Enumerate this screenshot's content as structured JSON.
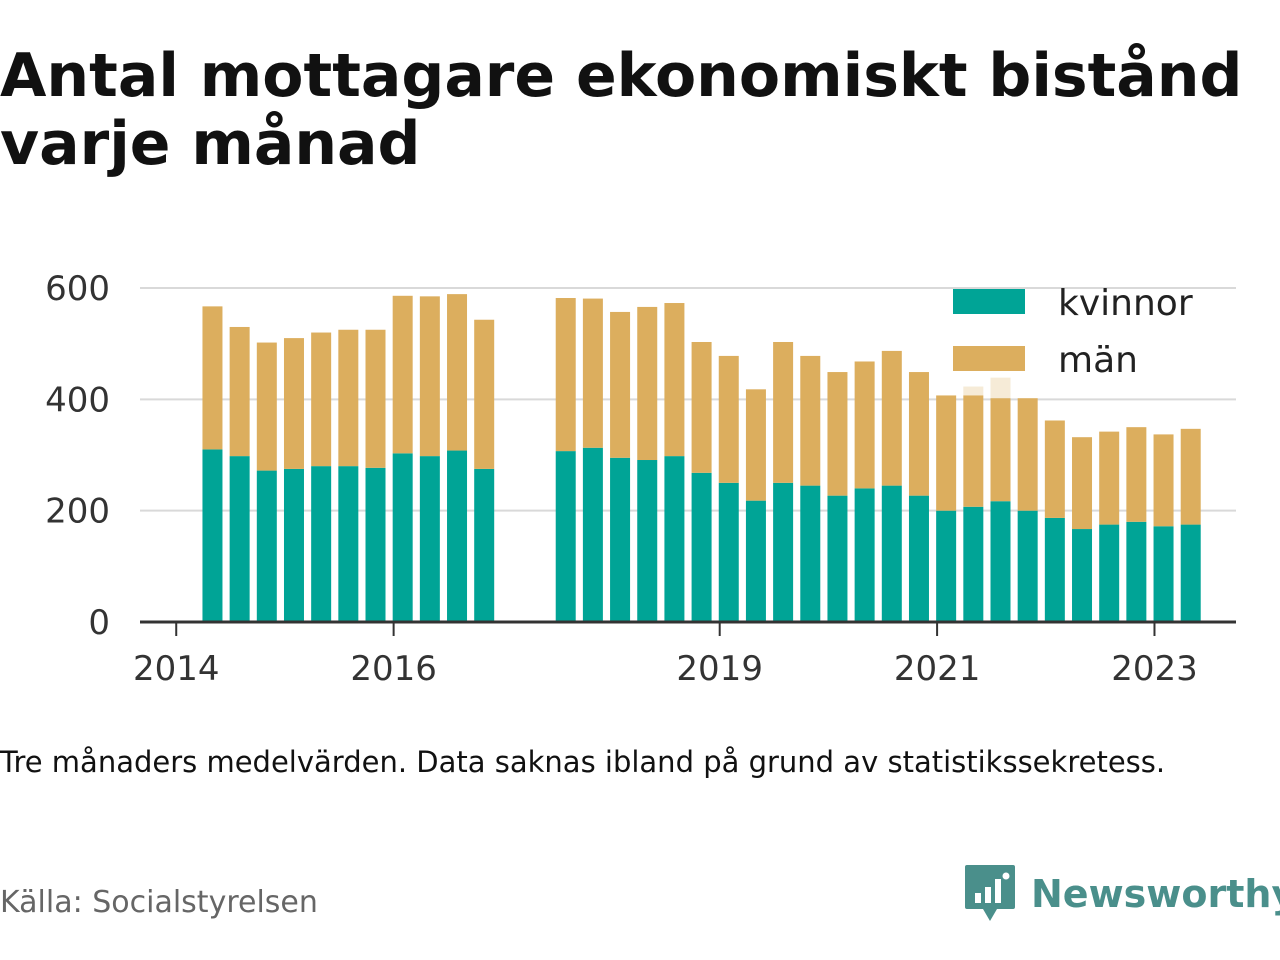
{
  "title": "Antal mottagare ekonomiskt bistånd varje månad",
  "note": "Tre månaders medelvärden. Data saknas ibland på grund av statistikssekretess.",
  "source": "Källa: Socialstyrelsen",
  "brand": {
    "name": "Newsworthy"
  },
  "colors": {
    "kvinnor": "#00a496",
    "man": "#dcae5e",
    "grid": "#d9d9d9",
    "axis": "#333333"
  },
  "chart_data": {
    "type": "bar",
    "stacked": true,
    "title": "Antal mottagare ekonomiskt bistånd varje månad",
    "xlabel": "",
    "ylabel": "",
    "ylim": [
      0,
      600
    ],
    "yticks": [
      0,
      200,
      400,
      600
    ],
    "xticks": [
      {
        "date": "2014-01",
        "label": "2014"
      },
      {
        "date": "2016-01",
        "label": "2016"
      },
      {
        "date": "2019-01",
        "label": "2019"
      },
      {
        "date": "2021-01",
        "label": "2021"
      },
      {
        "date": "2023-01",
        "label": "2023"
      }
    ],
    "xlim": [
      "2013-09",
      "2023-10"
    ],
    "legend": {
      "position": "top-right",
      "entries": [
        "kvinnor",
        "män"
      ]
    },
    "grid": true,
    "categories": [
      "2014-04",
      "2014-07",
      "2014-10",
      "2015-01",
      "2015-04",
      "2015-07",
      "2015-10",
      "2016-01",
      "2016-04",
      "2016-07",
      "2016-10",
      "2017-07",
      "2017-10",
      "2018-01",
      "2018-04",
      "2018-07",
      "2018-10",
      "2019-01",
      "2019-04",
      "2019-07",
      "2019-10",
      "2020-01",
      "2020-04",
      "2020-07",
      "2020-10",
      "2021-01",
      "2021-04",
      "2021-07",
      "2021-10",
      "2022-01",
      "2022-04",
      "2022-07",
      "2022-10",
      "2023-01",
      "2023-04"
    ],
    "series": [
      {
        "name": "kvinnor",
        "values": [
          310,
          298,
          272,
          275,
          280,
          280,
          277,
          303,
          298,
          308,
          275,
          307,
          313,
          295,
          291,
          298,
          268,
          250,
          218,
          250,
          245,
          227,
          240,
          245,
          227,
          200,
          207,
          217,
          200,
          187,
          167,
          175,
          180,
          172,
          175
        ]
      },
      {
        "name": "män",
        "values": [
          257,
          232,
          230,
          235,
          240,
          245,
          248,
          283,
          287,
          281,
          268,
          275,
          268,
          262,
          275,
          275,
          235,
          228,
          200,
          253,
          233,
          222,
          228,
          242,
          222,
          207,
          200,
          185,
          202,
          175,
          165,
          167,
          170,
          165,
          172
        ]
      }
    ],
    "faded_segments": [
      {
        "category": "2021-04",
        "series": "män",
        "value": 16
      },
      {
        "category": "2021-07",
        "series": "män",
        "value": 37
      }
    ]
  }
}
